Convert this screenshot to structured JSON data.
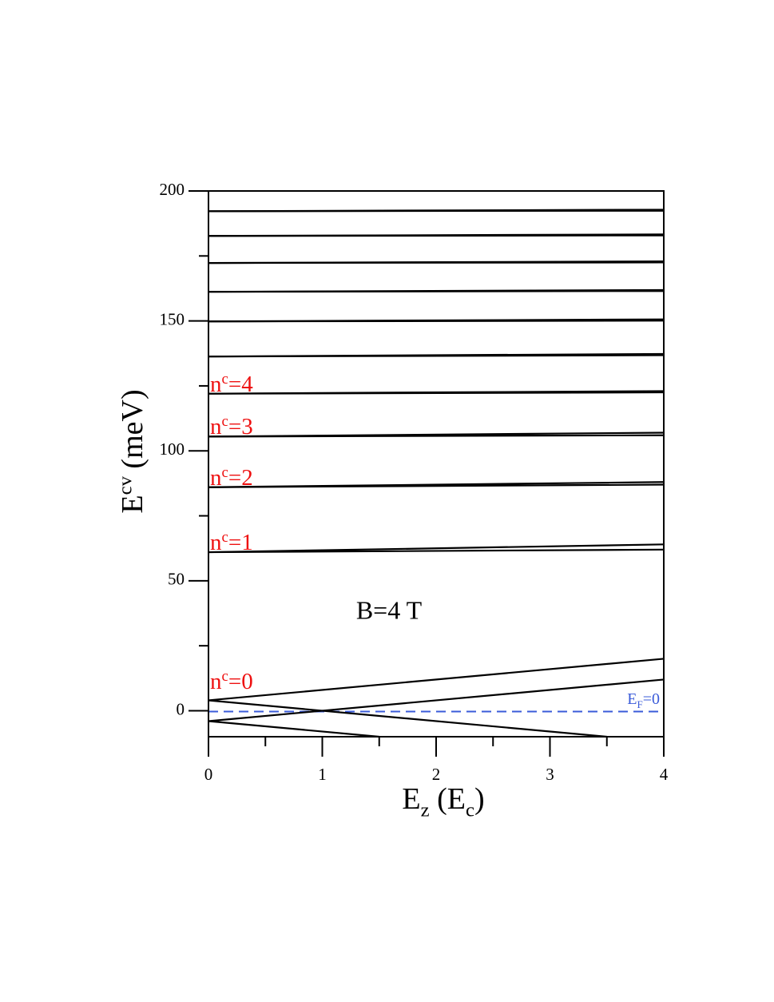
{
  "chart_data": {
    "type": "line",
    "x_label": [
      {
        "text": "E"
      },
      {
        "text": "z",
        "shift": "sub"
      },
      {
        "text": " (E"
      },
      {
        "text": "c",
        "shift": "sub"
      },
      {
        "text": ")"
      }
    ],
    "y_label": [
      {
        "text": "E"
      },
      {
        "text": "cv",
        "shift": "sup"
      },
      {
        "text": " (meV)"
      }
    ],
    "xlim": [
      0,
      4
    ],
    "ylim": [
      -10,
      200
    ],
    "xticks": [
      0,
      1,
      2,
      3,
      4
    ],
    "xminor": [
      0.5,
      1.5,
      2.5,
      3.5
    ],
    "yticks": [
      0,
      50,
      100,
      150,
      200
    ],
    "yminor": [
      25,
      75,
      125,
      175
    ],
    "x": [
      0,
      4
    ],
    "series": [
      {
        "color": "#000000",
        "values": [
          4,
          20
        ]
      },
      {
        "color": "#000000",
        "x": [
          0,
          3.5
        ],
        "values": [
          4,
          -10
        ]
      },
      {
        "color": "#000000",
        "values": [
          -4,
          12
        ]
      },
      {
        "color": "#000000",
        "x": [
          0,
          1.5
        ],
        "values": [
          -4,
          -10
        ]
      },
      {
        "color": "#000000",
        "values": [
          61,
          64
        ]
      },
      {
        "color": "#000000",
        "values": [
          61,
          62
        ]
      },
      {
        "color": "#000000",
        "values": [
          86,
          88
        ]
      },
      {
        "color": "#000000",
        "values": [
          86,
          87
        ]
      },
      {
        "color": "#000000",
        "values": [
          105.5,
          107
        ]
      },
      {
        "color": "#000000",
        "values": [
          105.5,
          106
        ]
      },
      {
        "color": "#000000",
        "values": [
          122,
          123
        ]
      },
      {
        "color": "#000000",
        "values": [
          122,
          122.5
        ]
      },
      {
        "color": "#000000",
        "values": [
          136.3,
          137.3
        ]
      },
      {
        "color": "#000000",
        "values": [
          136.3,
          136.8
        ]
      },
      {
        "color": "#000000",
        "values": [
          149.8,
          150.6
        ]
      },
      {
        "color": "#000000",
        "values": [
          149.8,
          150.1
        ]
      },
      {
        "color": "#000000",
        "values": [
          161.2,
          161.9
        ]
      },
      {
        "color": "#000000",
        "values": [
          161.2,
          161.5
        ]
      },
      {
        "color": "#000000",
        "values": [
          172.3,
          172.9
        ]
      },
      {
        "color": "#000000",
        "values": [
          172.3,
          172.5
        ]
      },
      {
        "color": "#000000",
        "values": [
          182.7,
          183.3
        ]
      },
      {
        "color": "#000000",
        "values": [
          182.7,
          182.9
        ]
      },
      {
        "color": "#000000",
        "values": [
          192.2,
          192.8
        ]
      },
      {
        "color": "#000000",
        "values": [
          192.2,
          192.4
        ]
      }
    ],
    "reference_line": {
      "y": 0,
      "color": "#3a5bd9",
      "dashed": true,
      "label": [
        {
          "text": "E"
        },
        {
          "text": "F",
          "shift": "sub"
        },
        {
          "text": "=0"
        }
      ]
    },
    "level_labels": {
      "color": "#ee1111",
      "items": [
        [
          {
            "text": "n"
          },
          {
            "text": "c",
            "shift": "sup"
          },
          {
            "text": "=4"
          }
        ],
        [
          {
            "text": "n"
          },
          {
            "text": "c",
            "shift": "sup"
          },
          {
            "text": "=3"
          }
        ],
        [
          {
            "text": "n"
          },
          {
            "text": "c",
            "shift": "sup"
          },
          {
            "text": "=2"
          }
        ],
        [
          {
            "text": "n"
          },
          {
            "text": "c",
            "shift": "sup"
          },
          {
            "text": "=1"
          }
        ],
        [
          {
            "text": "n"
          },
          {
            "text": "c",
            "shift": "sup"
          },
          {
            "text": "=0"
          }
        ]
      ]
    },
    "annotation": "B=4 T"
  }
}
